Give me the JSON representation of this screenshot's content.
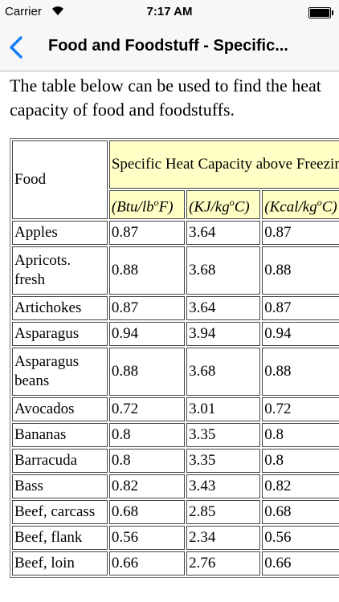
{
  "status_bar": {
    "carrier": "Carrier",
    "time": "7:17 AM"
  },
  "nav_bar": {
    "title": "Food and Foodstuff - Specific..."
  },
  "intro": "The table below can be used to find the heat capacity of food and foodstuffs.",
  "table": {
    "food_header": "Food",
    "group_header": "Specific Heat Capacity above Freezing",
    "units": [
      {
        "base": "(Btu/lb",
        "sup": "o",
        "end": "F)"
      },
      {
        "base": "(KJ/kg",
        "sup": "o",
        "end": "C)"
      },
      {
        "base": "(Kcal/kg",
        "sup": "o",
        "end": "C)"
      }
    ],
    "rows": [
      [
        "Apples",
        "0.87",
        "3.64",
        "0.87"
      ],
      [
        "Apricots. fresh",
        "0.88",
        "3.68",
        "0.88"
      ],
      [
        "Artichokes",
        "0.87",
        "3.64",
        "0.87"
      ],
      [
        "Asparagus",
        "0.94",
        "3.94",
        "0.94"
      ],
      [
        "Asparagus beans",
        "0.88",
        "3.68",
        "0.88"
      ],
      [
        "Avocados",
        "0.72",
        "3.01",
        "0.72"
      ],
      [
        "Bananas",
        "0.8",
        "3.35",
        "0.8"
      ],
      [
        "Barracuda",
        "0.8",
        "3.35",
        "0.8"
      ],
      [
        "Bass",
        "0.82",
        "3.43",
        "0.82"
      ],
      [
        "Beef, carcass",
        "0.68",
        "2.85",
        "0.68"
      ],
      [
        "Beef, flank",
        "0.56",
        "2.34",
        "0.56"
      ],
      [
        "Beef, loin",
        "0.66",
        "2.76",
        "0.66"
      ]
    ]
  }
}
